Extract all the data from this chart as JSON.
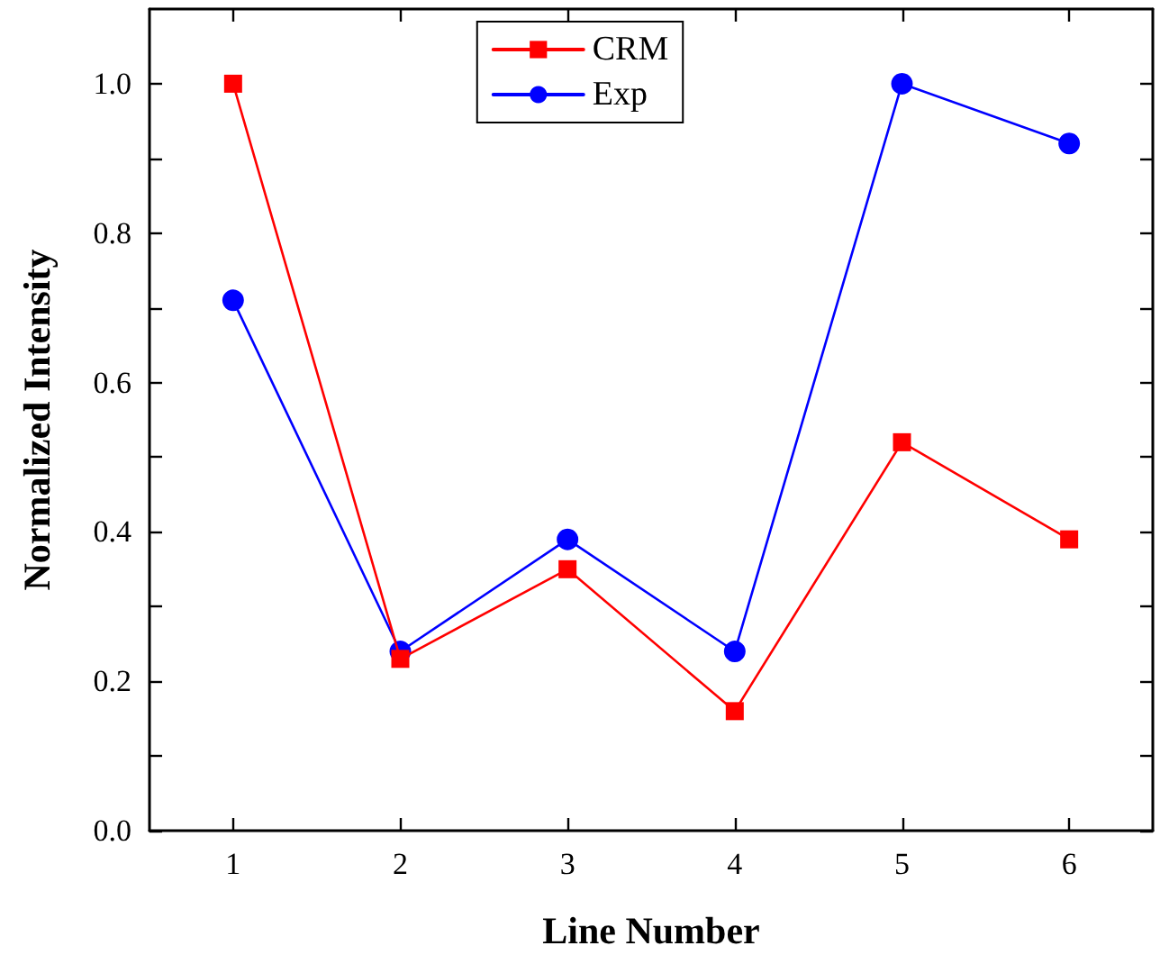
{
  "chart_data": {
    "type": "line",
    "xlabel": "Line Number",
    "ylabel": "Normalized Intensity",
    "x": [
      1,
      2,
      3,
      4,
      5,
      6
    ],
    "series": [
      {
        "name": "CRM",
        "color": "#ff0000",
        "marker": "square",
        "values": [
          1.0,
          0.23,
          0.35,
          0.16,
          0.52,
          0.39
        ]
      },
      {
        "name": "Exp",
        "color": "#0000ff",
        "marker": "circle",
        "values": [
          0.71,
          0.24,
          0.39,
          0.24,
          1.0,
          0.92
        ]
      }
    ],
    "xlim": [
      0.5,
      6.5
    ],
    "xticks": [
      1,
      2,
      3,
      4,
      5,
      6
    ],
    "ylim": [
      0,
      1.1
    ],
    "yticks": [
      {
        "value": 0,
        "label": "0.0"
      },
      {
        "value": 0.2,
        "label": "0.2"
      },
      {
        "value": 0.4,
        "label": "0.4"
      },
      {
        "value": 0.6,
        "label": "0.6"
      },
      {
        "value": 0.8,
        "label": "0.8"
      },
      {
        "value": 1.0,
        "label": "1.0"
      }
    ],
    "grid": false,
    "legend": "top",
    "line_style": "solid"
  }
}
